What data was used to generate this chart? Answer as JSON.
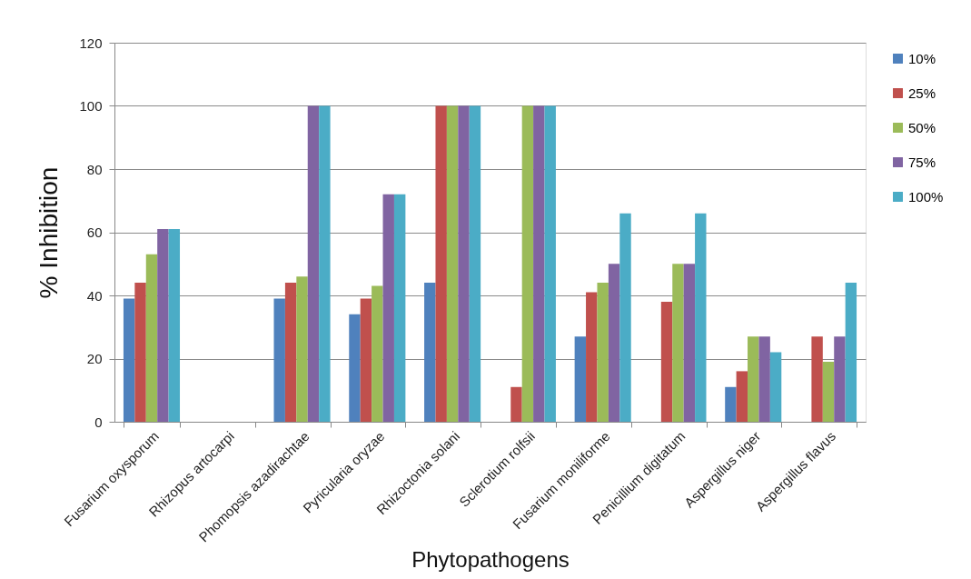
{
  "chart_data": {
    "type": "bar",
    "xlabel": "Phytopathogens",
    "ylabel": "% Inhibition",
    "categories": [
      "Fusarium  oxysporum",
      "Rhizopus artocarpi",
      "Phomopsis azadirachtae",
      "Pyricularia oryzae",
      "Rhizoctonia solani",
      "Sclerotium rolfsii",
      "Fusarium moniliforme",
      "Penicillium digitatum",
      "Aspergillus niger",
      "Aspergillus flavus"
    ],
    "series": [
      {
        "name": "10%",
        "color": "#4f81bd",
        "values": [
          39,
          0,
          39,
          34,
          44,
          0,
          27,
          0,
          11,
          0
        ]
      },
      {
        "name": "25%",
        "color": "#c0504d",
        "values": [
          44,
          0,
          44,
          39,
          100,
          11,
          41,
          38,
          16,
          27
        ]
      },
      {
        "name": "50%",
        "color": "#9bbb59",
        "values": [
          53,
          0,
          46,
          43,
          100,
          100,
          44,
          50,
          27,
          19
        ]
      },
      {
        "name": "75%",
        "color": "#8064a2",
        "values": [
          61,
          0,
          100,
          72,
          100,
          100,
          50,
          50,
          27,
          27
        ]
      },
      {
        "name": "100%",
        "color": "#4bacc6",
        "values": [
          61,
          0,
          100,
          72,
          100,
          100,
          66,
          66,
          22,
          44
        ]
      }
    ],
    "ylim": [
      0,
      120
    ],
    "yticks": [
      0,
      20,
      40,
      60,
      80,
      100,
      120
    ],
    "grid": "y",
    "legend": "right"
  }
}
